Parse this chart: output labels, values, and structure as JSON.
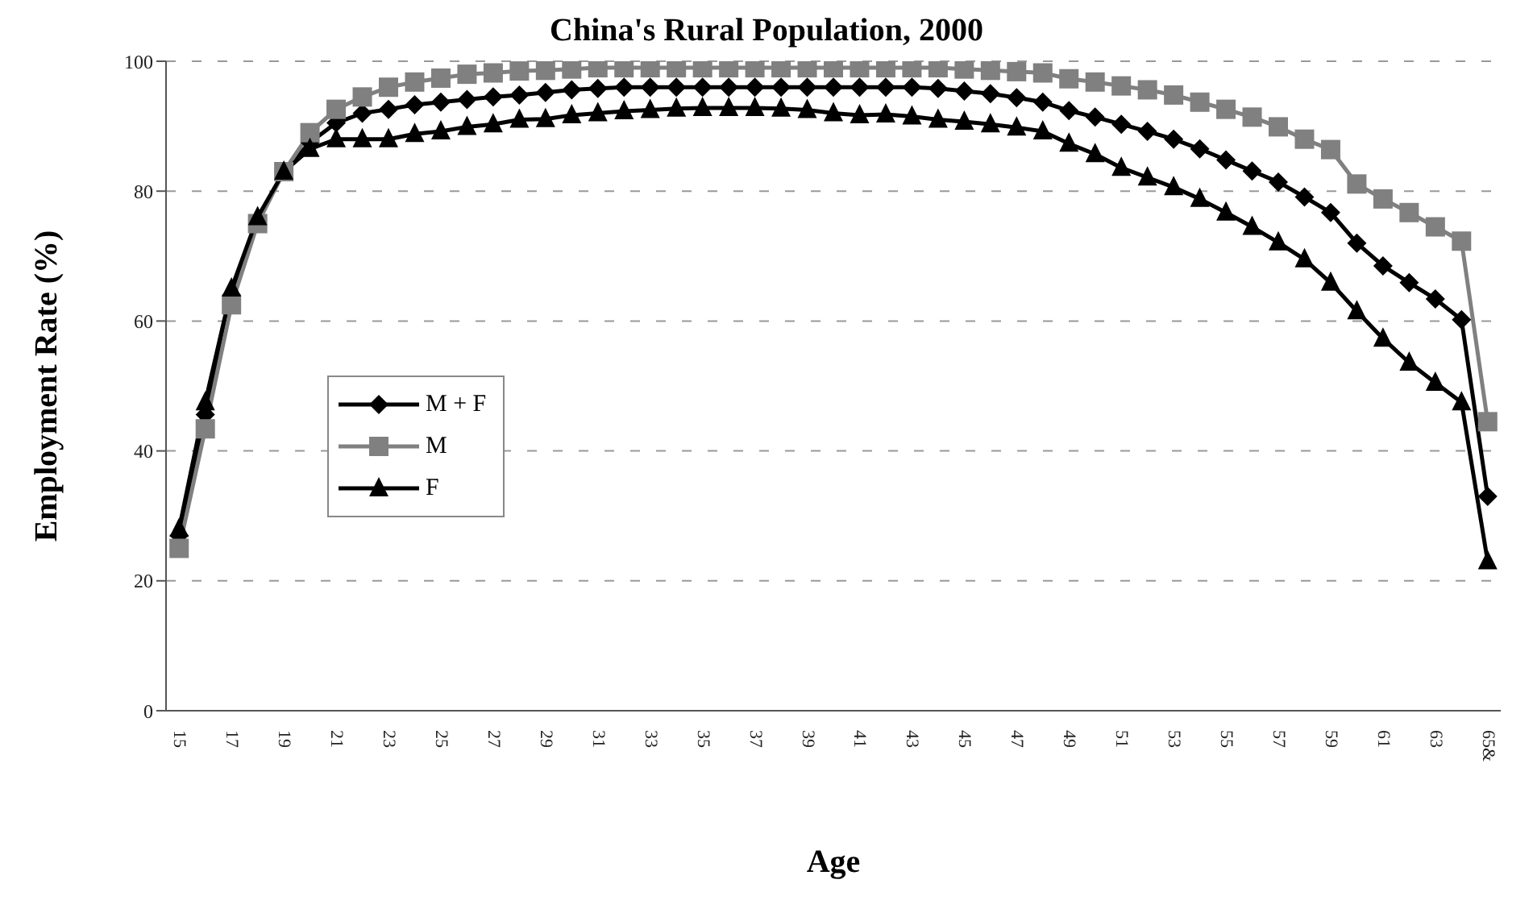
{
  "chart_data": {
    "type": "line",
    "title": "China's Rural Population, 2000",
    "xlabel": "Age",
    "ylabel": "Employment Rate (%)",
    "categories": [
      "15",
      null,
      "17",
      null,
      "19",
      null,
      "21",
      null,
      "23",
      null,
      "25",
      null,
      "27",
      null,
      "29",
      null,
      "31",
      null,
      "33",
      null,
      "35",
      null,
      "37",
      null,
      "39",
      null,
      "41",
      null,
      "43",
      null,
      "45",
      null,
      "47",
      null,
      "49",
      null,
      "51",
      null,
      "53",
      null,
      "55",
      null,
      "57",
      null,
      "59",
      null,
      "61",
      null,
      "63",
      null,
      "65&"
    ],
    "series": [
      {
        "name": "M + F",
        "color": "#000000",
        "marker": "diamond",
        "values": [
          27,
          45.6,
          64,
          75.5,
          83,
          87.5,
          90.5,
          92,
          92.6,
          93.3,
          93.7,
          94.1,
          94.5,
          94.8,
          95.2,
          95.6,
          95.8,
          96,
          96,
          96,
          96,
          96,
          96,
          96,
          96,
          96,
          96,
          96,
          96,
          95.8,
          95.4,
          95,
          94.4,
          93.7,
          92.4,
          91.4,
          90.3,
          89.2,
          88,
          86.5,
          84.8,
          83.1,
          81.4,
          79.1,
          76.7,
          72,
          68.5,
          65.9,
          63.4,
          60.2,
          33
        ]
      },
      {
        "name": "M",
        "color": "#808080",
        "marker": "square",
        "values": [
          25,
          43.4,
          62.5,
          75,
          83,
          89,
          92.6,
          94.5,
          96,
          96.8,
          97.4,
          98,
          98.2,
          98.5,
          98.6,
          98.8,
          99,
          99,
          99,
          99,
          99,
          99,
          99,
          99,
          99,
          99,
          99,
          99,
          99,
          99,
          98.8,
          98.6,
          98.4,
          98.2,
          97.3,
          96.8,
          96.2,
          95.6,
          94.8,
          93.7,
          92.6,
          91.4,
          89.9,
          88,
          86.4,
          81.1,
          78.8,
          76.7,
          74.5,
          72.3,
          44.5
        ]
      },
      {
        "name": "F",
        "color": "#000000",
        "marker": "triangle",
        "values": [
          28,
          47.5,
          65,
          76,
          83,
          86.5,
          88,
          88,
          88,
          88.8,
          89.2,
          89.9,
          90.3,
          91,
          91.1,
          91.7,
          92,
          92.3,
          92.5,
          92.7,
          92.8,
          92.8,
          92.8,
          92.7,
          92.5,
          92,
          91.7,
          91.8,
          91.5,
          91,
          90.7,
          90.3,
          89.8,
          89.2,
          87.3,
          85.7,
          83.6,
          82.1,
          80.6,
          78.8,
          76.7,
          74.5,
          72.1,
          69.5,
          65.9,
          61.5,
          57.3,
          53.6,
          50.5,
          47.5,
          23
        ]
      }
    ],
    "ylim": [
      0,
      100
    ],
    "yticks": [
      0,
      20,
      40,
      60,
      80,
      100
    ],
    "grid": "y",
    "legend": "left"
  }
}
